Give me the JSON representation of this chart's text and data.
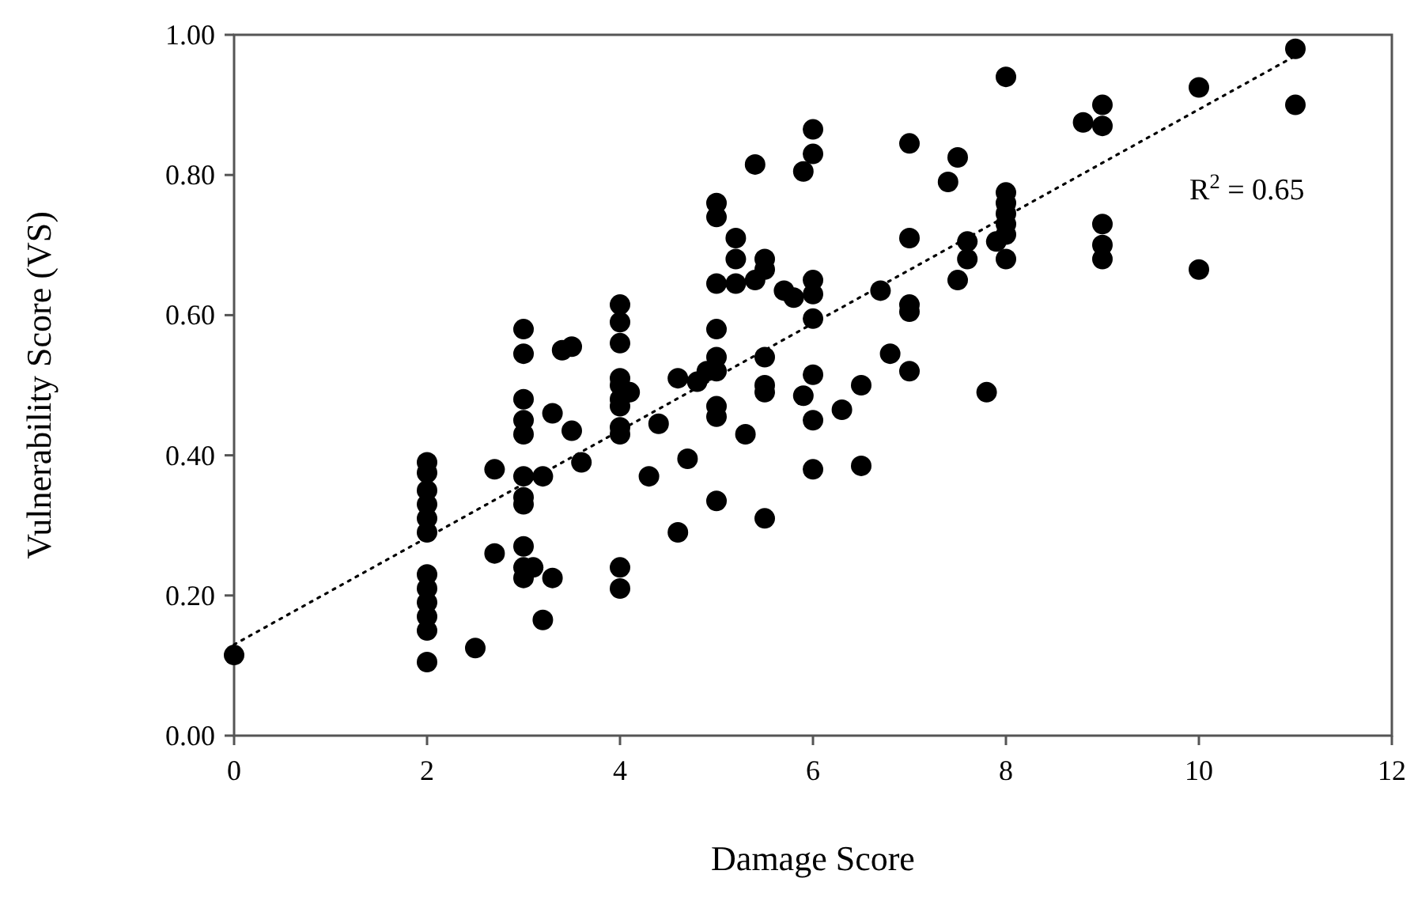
{
  "chart_data": {
    "type": "scatter",
    "xlabel": "Damage Score",
    "ylabel": "Vulnerability Score (VS)",
    "annotations": [
      "R$^{2}$ = 0.65"
    ],
    "xlim": [
      0,
      12
    ],
    "xticks": [
      0,
      2,
      4,
      6,
      8,
      10,
      12
    ],
    "ylim": [
      0,
      1
    ],
    "yticks": [
      {
        "value": 0,
        "label": "0.00"
      },
      {
        "value": 0.2,
        "label": "0.20"
      },
      {
        "value": 0.4,
        "label": "0.40"
      },
      {
        "value": 0.6,
        "label": "0.60"
      },
      {
        "value": 0.8,
        "label": "0.80"
      },
      {
        "value": 1,
        "label": "1.00"
      }
    ],
    "grid": false,
    "series": [
      {
        "color": "#000000",
        "marker": "circle",
        "x": [
          0,
          2,
          2,
          2,
          2,
          2,
          2,
          2,
          2,
          2,
          2,
          2,
          2,
          2.5,
          2.7,
          2.7,
          3,
          3,
          3,
          3,
          3,
          3,
          3,
          3,
          3,
          3,
          3,
          3.1,
          3.2,
          3.2,
          3.3,
          3.3,
          3.4,
          3.5,
          3.5,
          3.6,
          4,
          4,
          4,
          4,
          4,
          4,
          4,
          4,
          4,
          4,
          4,
          4.1,
          4.3,
          4.4,
          4.6,
          4.6,
          4.7,
          4.8,
          4.9,
          5,
          5,
          5,
          5,
          5,
          5,
          5,
          5,
          5,
          5.2,
          5.2,
          5.2,
          5.3,
          5.4,
          5.4,
          5.5,
          5.5,
          5.5,
          5.5,
          5.5,
          5.5,
          5.7,
          5.8,
          5.9,
          5.9,
          6,
          6,
          6,
          6,
          6,
          6,
          6,
          6,
          6.3,
          6.5,
          6.5,
          6.7,
          6.8,
          7,
          7,
          7,
          7,
          7,
          7.4,
          7.5,
          7.5,
          7.6,
          7.6,
          7.8,
          7.9,
          8,
          8,
          8,
          8,
          8,
          8,
          8,
          8.8,
          9,
          9,
          9,
          9,
          9,
          10,
          10,
          11,
          11
        ],
        "values": [
          0.115,
          0.39,
          0.375,
          0.35,
          0.33,
          0.31,
          0.29,
          0.23,
          0.21,
          0.19,
          0.17,
          0.15,
          0.105,
          0.125,
          0.38,
          0.26,
          0.58,
          0.545,
          0.48,
          0.45,
          0.43,
          0.37,
          0.34,
          0.33,
          0.27,
          0.24,
          0.225,
          0.24,
          0.37,
          0.165,
          0.46,
          0.225,
          0.55,
          0.555,
          0.435,
          0.39,
          0.615,
          0.59,
          0.56,
          0.51,
          0.5,
          0.48,
          0.47,
          0.44,
          0.43,
          0.24,
          0.21,
          0.49,
          0.37,
          0.445,
          0.51,
          0.29,
          0.395,
          0.505,
          0.52,
          0.76,
          0.74,
          0.645,
          0.58,
          0.54,
          0.52,
          0.47,
          0.455,
          0.335,
          0.71,
          0.68,
          0.645,
          0.43,
          0.815,
          0.65,
          0.68,
          0.665,
          0.54,
          0.5,
          0.49,
          0.31,
          0.635,
          0.625,
          0.805,
          0.485,
          0.865,
          0.83,
          0.65,
          0.63,
          0.595,
          0.515,
          0.45,
          0.38,
          0.465,
          0.5,
          0.385,
          0.635,
          0.545,
          0.845,
          0.71,
          0.615,
          0.605,
          0.52,
          0.79,
          0.825,
          0.65,
          0.705,
          0.68,
          0.49,
          0.705,
          0.94,
          0.775,
          0.76,
          0.745,
          0.73,
          0.715,
          0.68,
          0.875,
          0.9,
          0.87,
          0.73,
          0.7,
          0.68,
          0.925,
          0.665,
          0.98,
          0.9
        ]
      },
      {
        "type": "line",
        "color": "#000000",
        "marker": "none",
        "line_style": "dotted",
        "x": [
          0,
          11
        ],
        "values": [
          0.13,
          0.97
        ]
      }
    ]
  }
}
